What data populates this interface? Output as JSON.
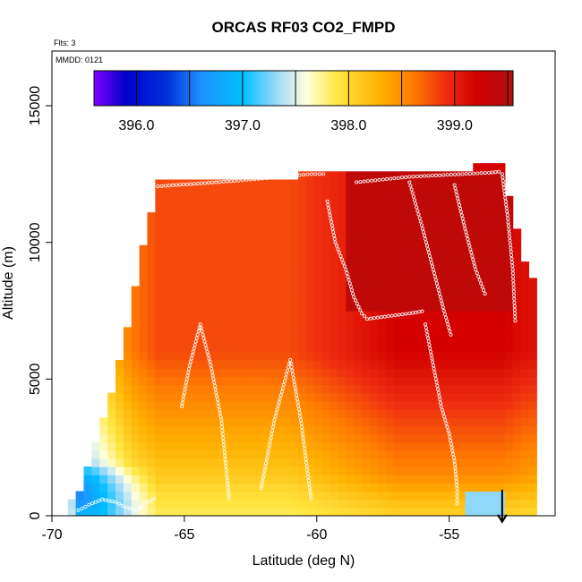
{
  "chart_data": {
    "type": "heatmap",
    "title": "ORCAS RF03 CO2_FMPD",
    "subtitle_flights": "Flts: 3",
    "subtitle_date": "MMDD: 0121",
    "xlabel": "Latitude (deg N)",
    "ylabel": "Altitude (m)",
    "xlim": [
      -70,
      -51
    ],
    "ylim": [
      0,
      17000
    ],
    "x_ticks": [
      -70,
      -65,
      -60,
      -55
    ],
    "x_tick_labels": [
      "-70",
      "-65",
      "-60",
      "-55"
    ],
    "y_ticks": [
      0,
      5000,
      10000,
      15000
    ],
    "y_tick_labels": [
      "0",
      "5000",
      "10000",
      "15000"
    ],
    "colorbar": {
      "range": [
        395.6,
        399.55
      ],
      "ticks": [
        396.0,
        397.0,
        398.0,
        399.0
      ],
      "tick_labels": [
        "396.0",
        "397.0",
        "398.0",
        "399.0"
      ],
      "separators": [
        396.0,
        396.5,
        397.0,
        397.5,
        398.0,
        398.5,
        399.0,
        399.5
      ],
      "stops": [
        {
          "v": 395.6,
          "c": "#7f00ff"
        },
        {
          "v": 395.9,
          "c": "#0000cc"
        },
        {
          "v": 396.3,
          "c": "#0033dd"
        },
        {
          "v": 396.6,
          "c": "#1e90ff"
        },
        {
          "v": 397.0,
          "c": "#00bfff"
        },
        {
          "v": 397.35,
          "c": "#a8dcf8"
        },
        {
          "v": 397.6,
          "c": "#ffffe0"
        },
        {
          "v": 397.9,
          "c": "#ffe640"
        },
        {
          "v": 398.3,
          "c": "#ffb000"
        },
        {
          "v": 398.6,
          "c": "#ff7d00"
        },
        {
          "v": 398.9,
          "c": "#f03010"
        },
        {
          "v": 399.2,
          "c": "#d40000"
        },
        {
          "v": 399.55,
          "c": "#b01010"
        }
      ]
    },
    "field": {
      "description_units": "CO2 ppm by latitude column (deg N) and altitude (m)",
      "columns": [
        {
          "lat": -69.0,
          "top": 600,
          "base": 398.0
        },
        {
          "lat": -68.5,
          "top": 2000,
          "base": 398.0
        },
        {
          "lat": -68.0,
          "top": 3500,
          "base": 398.2
        },
        {
          "lat": -67.5,
          "top": 5500,
          "base": 398.4
        },
        {
          "lat": -67.0,
          "top": 7500,
          "base": 398.6
        },
        {
          "lat": -66.5,
          "top": 10000,
          "base": 398.7
        },
        {
          "lat": -66.0,
          "top": 12100,
          "base": 398.8
        },
        {
          "lat": -65.0,
          "top": 12100,
          "base": 398.8
        },
        {
          "lat": -64.0,
          "top": 12100,
          "base": 398.8
        },
        {
          "lat": -63.0,
          "top": 12100,
          "base": 398.8
        },
        {
          "lat": -62.0,
          "top": 12150,
          "base": 398.8
        },
        {
          "lat": -61.0,
          "top": 12200,
          "base": 398.8
        },
        {
          "lat": -60.0,
          "top": 12500,
          "base": 398.9
        },
        {
          "lat": -59.0,
          "top": 12500,
          "base": 399.0
        },
        {
          "lat": -58.0,
          "top": 12500,
          "base": 399.1
        },
        {
          "lat": -57.0,
          "top": 12500,
          "base": 399.2
        },
        {
          "lat": -56.0,
          "top": 12500,
          "base": 399.2
        },
        {
          "lat": -55.0,
          "top": 12600,
          "base": 399.2
        },
        {
          "lat": -54.0,
          "top": 12600,
          "base": 399.2
        },
        {
          "lat": -53.0,
          "top": 12700,
          "base": 399.2
        },
        {
          "lat": -52.0,
          "top": 8500,
          "base": 399.1
        }
      ],
      "features": [
        {
          "kind": "low_corner",
          "lat_min": -69.2,
          "lat_max": -66.0,
          "alt_max": 2000,
          "value": 396.8
        },
        {
          "kind": "boundary_layer",
          "alt_max": 1500,
          "value": 397.8
        },
        {
          "kind": "upper_maximum",
          "lat_min": -59.0,
          "lat_max": -52.5,
          "alt_min": 7500,
          "alt_max": 12600,
          "value": 399.5
        },
        {
          "kind": "small_low_patch",
          "lat_min": -54.5,
          "lat_max": -53.0,
          "alt_min": 0,
          "alt_max": 800,
          "value": 397.3
        }
      ]
    },
    "flight_track": {
      "segments": [
        {
          "lat": [
            -69.0,
            -68.6,
            -68.1,
            -67.6,
            -67.2,
            -66.8,
            -66.4,
            -66.0
          ],
          "alt": [
            200,
            400,
            600,
            500,
            300,
            200,
            500,
            700
          ]
        },
        {
          "lat": [
            -66.0,
            -65.3,
            -64.5,
            -63.8,
            -63.1,
            -62.5,
            -61.9,
            -61.3,
            -60.8,
            -60.2,
            -59.6
          ],
          "alt": [
            12050,
            12100,
            12150,
            12200,
            12250,
            12300,
            12350,
            12400,
            12450,
            12500,
            12500
          ]
        },
        {
          "lat": [
            -59.6,
            -59.3,
            -58.9,
            -58.6,
            -58.3,
            -58.1
          ],
          "alt": [
            11500,
            10000,
            9000,
            8000,
            7400,
            7200
          ]
        },
        {
          "lat": [
            -58.1,
            -57.3,
            -56.5,
            -55.9
          ],
          "alt": [
            7200,
            7300,
            7400,
            7500
          ]
        },
        {
          "lat": [
            -55.9,
            -55.6,
            -55.3,
            -55.0,
            -54.8,
            -54.7,
            -54.7
          ],
          "alt": [
            7000,
            5500,
            4000,
            3000,
            2000,
            1000,
            300
          ]
        },
        {
          "lat": [
            -58.5,
            -57.5,
            -56.5,
            -55.5,
            -54.5,
            -53.5,
            -53.0
          ],
          "alt": [
            12200,
            12300,
            12400,
            12450,
            12500,
            12550,
            12600
          ]
        },
        {
          "lat": [
            -56.5,
            -56.0,
            -55.6,
            -55.2,
            -54.9
          ],
          "alt": [
            12200,
            10500,
            9000,
            7500,
            6500
          ]
        },
        {
          "lat": [
            -54.8,
            -54.4,
            -54.0,
            -53.6
          ],
          "alt": [
            12100,
            10500,
            9000,
            8000
          ]
        },
        {
          "lat": [
            -53.0,
            -52.8,
            -52.6,
            -52.5
          ],
          "alt": [
            12500,
            11000,
            9000,
            7000
          ]
        },
        {
          "lat": [
            -65.1,
            -64.8,
            -64.4,
            -64.0,
            -63.6,
            -63.3
          ],
          "alt": [
            4000,
            5500,
            7000,
            5500,
            3500,
            500
          ]
        },
        {
          "lat": [
            -62.1,
            -61.6,
            -61.0,
            -60.6,
            -60.2
          ],
          "alt": [
            1000,
            3500,
            5700,
            3500,
            500
          ]
        }
      ]
    },
    "marker": {
      "symbol": "down-arrow",
      "lat": -53.0,
      "alt": 300
    }
  },
  "colors": {
    "axis": "#000000",
    "background": "#ffffff",
    "track_point": "#ffffff"
  }
}
